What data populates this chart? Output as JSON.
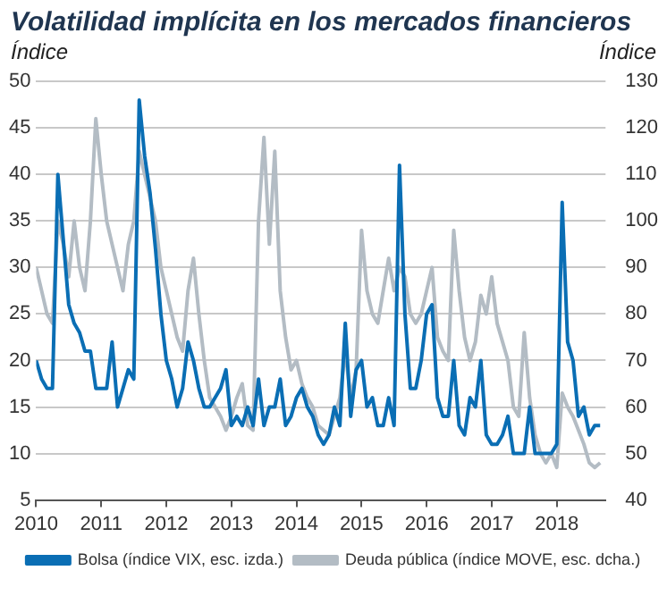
{
  "chart_data": {
    "type": "line",
    "title": "Volatilidad implícita en los mercados financieros",
    "ylabel": "Índice",
    "y2label": "Índice",
    "x": [
      "2010-01",
      "2010-02",
      "2010-03",
      "2010-04",
      "2010-05",
      "2010-06",
      "2010-07",
      "2010-08",
      "2010-09",
      "2010-10",
      "2010-11",
      "2010-12",
      "2011-01",
      "2011-02",
      "2011-03",
      "2011-04",
      "2011-05",
      "2011-06",
      "2011-07",
      "2011-08",
      "2011-09",
      "2011-10",
      "2011-11",
      "2011-12",
      "2012-01",
      "2012-02",
      "2012-03",
      "2012-04",
      "2012-05",
      "2012-06",
      "2012-07",
      "2012-08",
      "2012-09",
      "2012-10",
      "2012-11",
      "2012-12",
      "2013-01",
      "2013-02",
      "2013-03",
      "2013-04",
      "2013-05",
      "2013-06",
      "2013-07",
      "2013-08",
      "2013-09",
      "2013-10",
      "2013-11",
      "2013-12",
      "2014-01",
      "2014-02",
      "2014-03",
      "2014-04",
      "2014-05",
      "2014-06",
      "2014-07",
      "2014-08",
      "2014-09",
      "2014-10",
      "2014-11",
      "2014-12",
      "2015-01",
      "2015-02",
      "2015-03",
      "2015-04",
      "2015-05",
      "2015-06",
      "2015-07",
      "2015-08",
      "2015-09",
      "2015-10",
      "2015-11",
      "2015-12",
      "2016-01",
      "2016-02",
      "2016-03",
      "2016-04",
      "2016-05",
      "2016-06",
      "2016-07",
      "2016-08",
      "2016-09",
      "2016-10",
      "2016-11",
      "2016-12",
      "2017-01",
      "2017-02",
      "2017-03",
      "2017-04",
      "2017-05",
      "2017-06",
      "2017-07",
      "2017-08",
      "2017-09",
      "2017-10",
      "2017-11",
      "2017-12",
      "2018-01",
      "2018-02",
      "2018-03",
      "2018-04",
      "2018-05",
      "2018-06",
      "2018-07",
      "2018-08",
      "2018-09"
    ],
    "series": [
      {
        "name": "Bolsa (índice VIX, esc. izda.)",
        "color": "#0a6eb4",
        "values": [
          20,
          18,
          17,
          17,
          40,
          33,
          26,
          24,
          23,
          21,
          21,
          17,
          17,
          17,
          22,
          15,
          17,
          19,
          18,
          48,
          42,
          38,
          32,
          25,
          20,
          18,
          15,
          17,
          22,
          20,
          17,
          15,
          15,
          16,
          17,
          19,
          13,
          14,
          13,
          15,
          13,
          18,
          13,
          15,
          15,
          18,
          13,
          14,
          16,
          17,
          15,
          14,
          12,
          11,
          12,
          15,
          13,
          24,
          14,
          19,
          20,
          15,
          16,
          13,
          13,
          16,
          13,
          41,
          25,
          17,
          17,
          20,
          25,
          26,
          16,
          14,
          14,
          20,
          13,
          12,
          16,
          15,
          20,
          12,
          11,
          11,
          12,
          14,
          10,
          10,
          10,
          15,
          10,
          10,
          10,
          10,
          11,
          37,
          22,
          20,
          14,
          15,
          12,
          13,
          13
        ]
      },
      {
        "name": "Deuda pública (índice MOVE, esc. dcha.)",
        "color": "#b3bcc4",
        "axis": "y2",
        "values": [
          90,
          85,
          80,
          78,
          100,
          95,
          88,
          100,
          90,
          85,
          100,
          122,
          110,
          100,
          95,
          90,
          85,
          95,
          100,
          115,
          110,
          105,
          100,
          90,
          85,
          80,
          75,
          72,
          85,
          92,
          80,
          70,
          62,
          60,
          58,
          55,
          58,
          62,
          65,
          56,
          55,
          100,
          118,
          95,
          115,
          85,
          75,
          68,
          70,
          65,
          62,
          60,
          56,
          55,
          54,
          58,
          62,
          72,
          62,
          68,
          98,
          85,
          80,
          78,
          85,
          92,
          85,
          90,
          88,
          80,
          78,
          80,
          85,
          90,
          75,
          72,
          70,
          98,
          85,
          75,
          70,
          74,
          84,
          80,
          88,
          78,
          74,
          70,
          60,
          58,
          76,
          62,
          54,
          50,
          48,
          50,
          47,
          63,
          60,
          58,
          55,
          52,
          48,
          47,
          48
        ]
      }
    ],
    "xlim": [
      "2010-01",
      "2018-10"
    ],
    "xticks": [
      "2010",
      "2011",
      "2012",
      "2013",
      "2014",
      "2015",
      "2016",
      "2017",
      "2018"
    ],
    "ylim": [
      5,
      50
    ],
    "yticks": [
      5,
      10,
      15,
      20,
      25,
      30,
      35,
      40,
      45,
      50
    ],
    "y2lim": [
      40,
      130
    ],
    "y2ticks": [
      40,
      50,
      60,
      70,
      80,
      90,
      100,
      110,
      120,
      130
    ],
    "grid": "y",
    "legend": "bottom",
    "marker": "none",
    "line_style": "solid"
  }
}
